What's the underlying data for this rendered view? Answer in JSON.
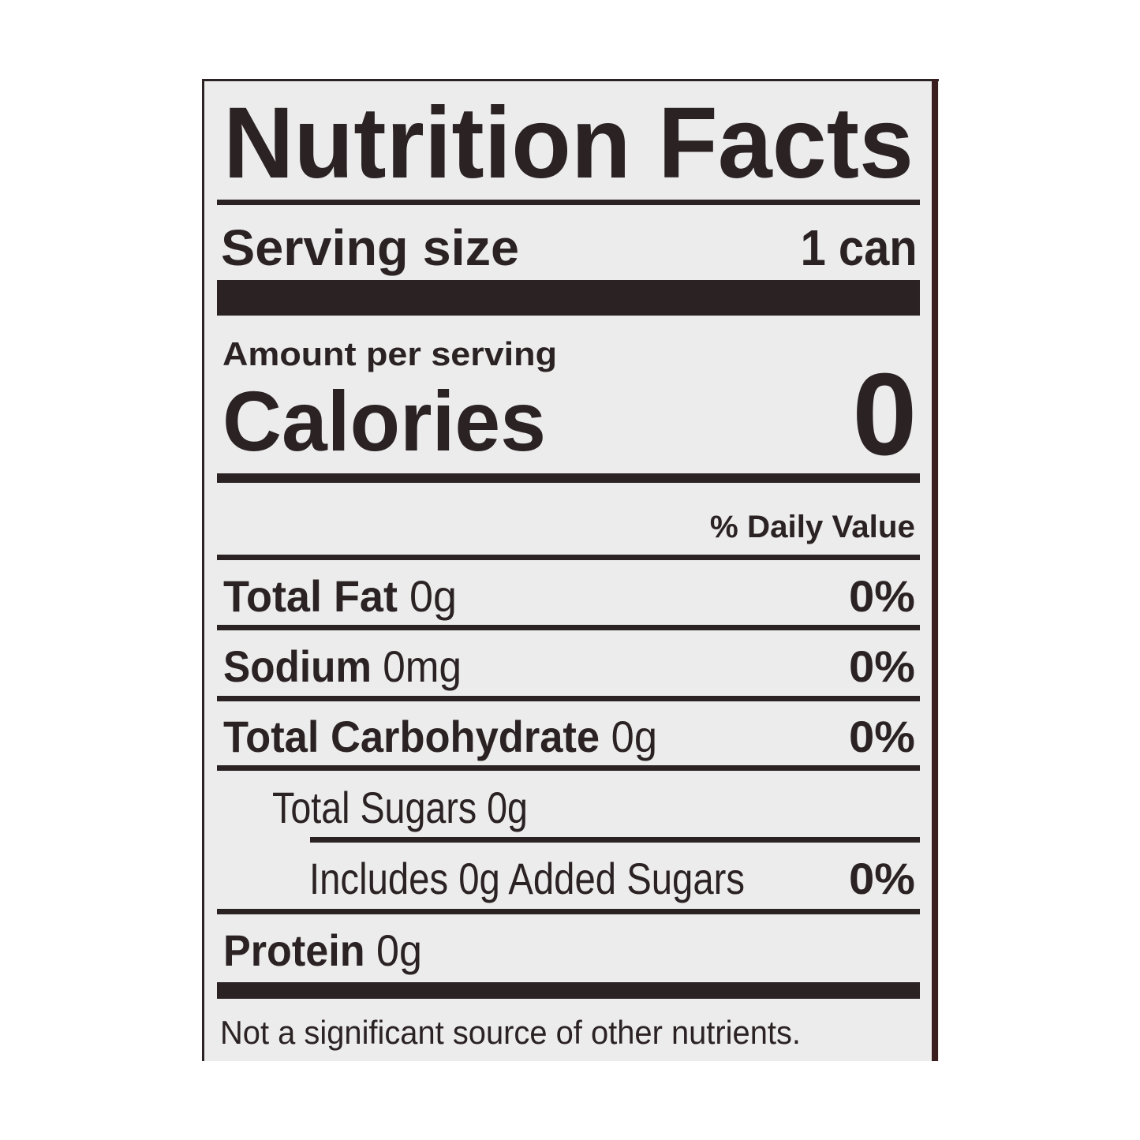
{
  "label": {
    "title": "Nutrition Facts",
    "serving_size_label": "Serving size",
    "serving_size_value": "1 can",
    "amount_per_serving": "Amount per serving",
    "calories_label": "Calories",
    "calories_value": "0",
    "daily_value_header": "% Daily Value",
    "nutrients": [
      {
        "name": "Total Fat",
        "amount": "0g",
        "dv": "0%"
      },
      {
        "name": "Sodium",
        "amount": "0mg",
        "dv": "0%"
      },
      {
        "name": "Total Carbohydrate",
        "amount": "0g",
        "dv": "0%"
      },
      {
        "name": "Total Sugars 0g"
      },
      {
        "name": "Includes 0g Added Sugars",
        "dv": "0%"
      },
      {
        "name": "Protein",
        "amount": "0g"
      }
    ],
    "footnote": "Not a significant source of other nutrients."
  },
  "colors": {
    "ink": "#2b2224",
    "panel": "#ececec",
    "edge": "#3a1e1e"
  }
}
